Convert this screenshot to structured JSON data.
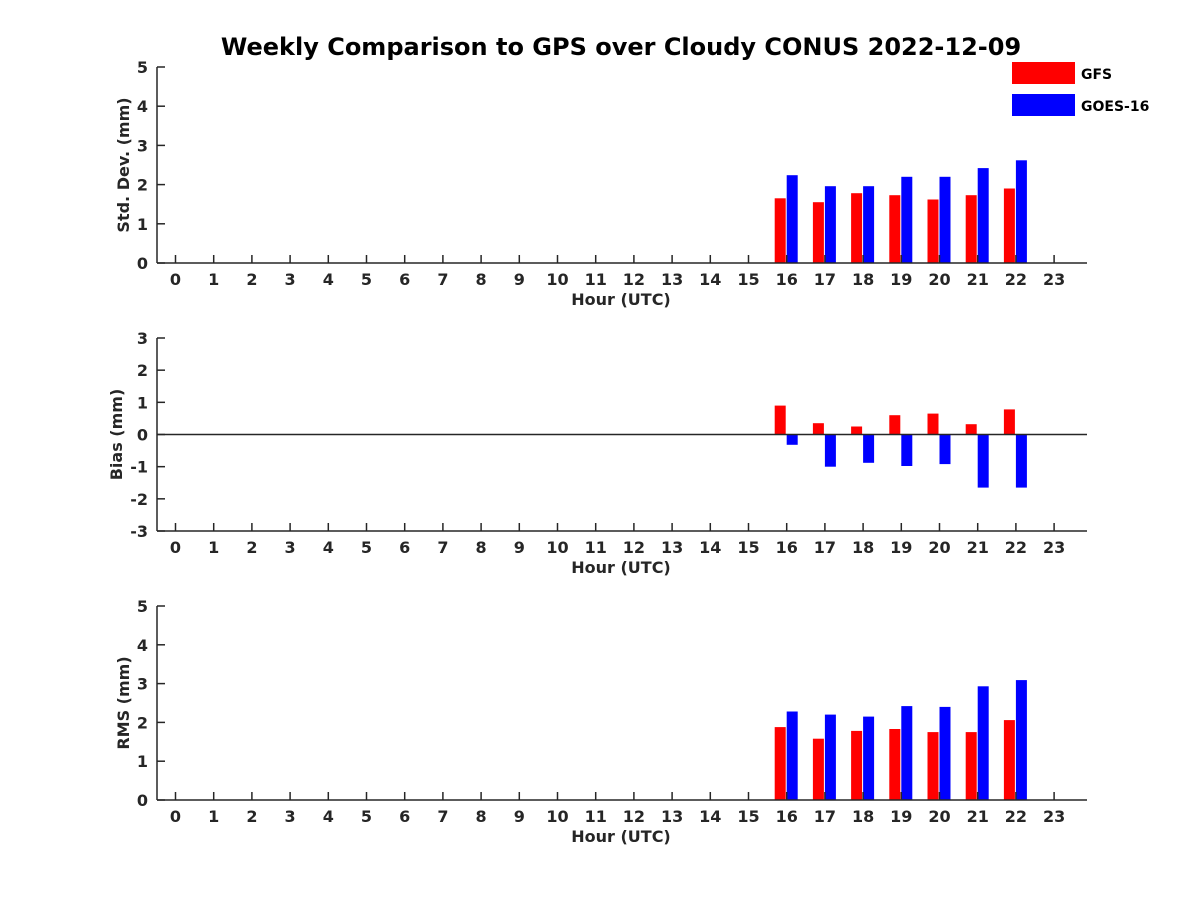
{
  "title": "Weekly Comparison to GPS over Cloudy CONUS 2022-12-09",
  "colors": {
    "GFS": "#ff0000",
    "GOES-16": "#0000ff",
    "axis": "#262626"
  },
  "legend": {
    "placement": "top-right",
    "entries": [
      "GFS",
      "GOES-16"
    ]
  },
  "chart_data": [
    {
      "type": "bar",
      "xlabel": "Hour (UTC)",
      "ylabel": "Std. Dev. (mm)",
      "ylim": [
        0,
        5
      ],
      "yticks": [
        0,
        1,
        2,
        3,
        4,
        5
      ],
      "categories": [
        "0",
        "1",
        "2",
        "3",
        "4",
        "5",
        "6",
        "7",
        "8",
        "9",
        "10",
        "11",
        "12",
        "13",
        "14",
        "15",
        "16",
        "17",
        "18",
        "19",
        "20",
        "21",
        "22",
        "23"
      ],
      "grid": false,
      "series": [
        {
          "name": "GFS",
          "values": [
            null,
            null,
            null,
            null,
            null,
            null,
            null,
            null,
            null,
            null,
            null,
            null,
            null,
            null,
            null,
            null,
            1.65,
            1.55,
            1.78,
            1.73,
            1.62,
            1.73,
            1.9,
            null
          ]
        },
        {
          "name": "GOES-16",
          "values": [
            null,
            null,
            null,
            null,
            null,
            null,
            null,
            null,
            null,
            null,
            null,
            null,
            null,
            null,
            null,
            null,
            2.24,
            1.96,
            1.96,
            2.2,
            2.2,
            2.42,
            2.62,
            null
          ]
        }
      ]
    },
    {
      "type": "bar",
      "xlabel": "Hour (UTC)",
      "ylabel": "Bias (mm)",
      "ylim": [
        -3,
        3
      ],
      "yticks": [
        -3,
        -2,
        -1,
        0,
        1,
        2,
        3
      ],
      "categories": [
        "0",
        "1",
        "2",
        "3",
        "4",
        "5",
        "6",
        "7",
        "8",
        "9",
        "10",
        "11",
        "12",
        "13",
        "14",
        "15",
        "16",
        "17",
        "18",
        "19",
        "20",
        "21",
        "22",
        "23"
      ],
      "grid": false,
      "zero_line": true,
      "series": [
        {
          "name": "GFS",
          "values": [
            null,
            null,
            null,
            null,
            null,
            null,
            null,
            null,
            null,
            null,
            null,
            null,
            null,
            null,
            null,
            null,
            0.9,
            0.35,
            0.25,
            0.6,
            0.65,
            0.32,
            0.78,
            null
          ]
        },
        {
          "name": "GOES-16",
          "values": [
            null,
            null,
            null,
            null,
            null,
            null,
            null,
            null,
            null,
            null,
            null,
            null,
            null,
            null,
            null,
            null,
            -0.32,
            -1.0,
            -0.88,
            -0.98,
            -0.92,
            -1.65,
            -1.65,
            null
          ]
        }
      ]
    },
    {
      "type": "bar",
      "xlabel": "Hour (UTC)",
      "ylabel": "RMS (mm)",
      "ylim": [
        0,
        5
      ],
      "yticks": [
        0,
        1,
        2,
        3,
        4,
        5
      ],
      "categories": [
        "0",
        "1",
        "2",
        "3",
        "4",
        "5",
        "6",
        "7",
        "8",
        "9",
        "10",
        "11",
        "12",
        "13",
        "14",
        "15",
        "16",
        "17",
        "18",
        "19",
        "20",
        "21",
        "22",
        "23"
      ],
      "grid": false,
      "series": [
        {
          "name": "GFS",
          "values": [
            null,
            null,
            null,
            null,
            null,
            null,
            null,
            null,
            null,
            null,
            null,
            null,
            null,
            null,
            null,
            null,
            1.88,
            1.58,
            1.78,
            1.83,
            1.75,
            1.75,
            2.06,
            null
          ]
        },
        {
          "name": "GOES-16",
          "values": [
            null,
            null,
            null,
            null,
            null,
            null,
            null,
            null,
            null,
            null,
            null,
            null,
            null,
            null,
            null,
            null,
            2.28,
            2.2,
            2.15,
            2.42,
            2.4,
            2.93,
            3.09,
            null
          ]
        }
      ]
    }
  ]
}
